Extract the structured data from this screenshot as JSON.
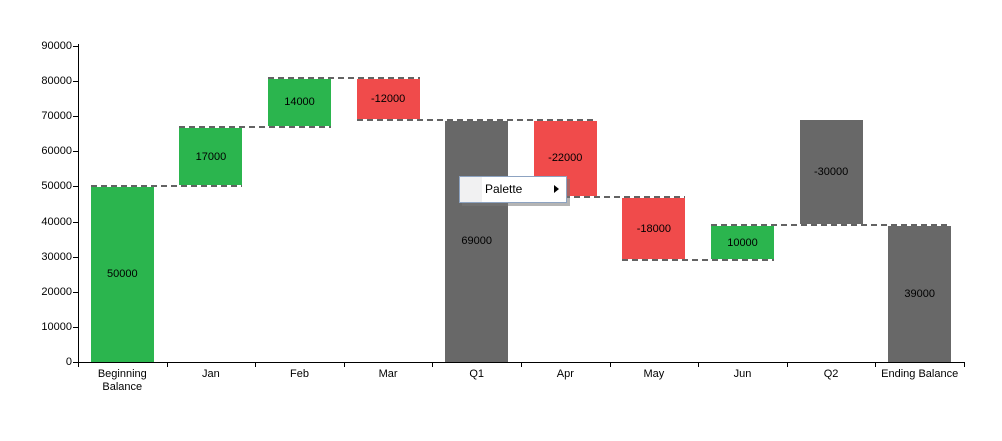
{
  "context_menu": {
    "items": [
      {
        "label": "Palette",
        "has_submenu": true,
        "submenu_icon": "right-arrow"
      }
    ]
  },
  "chart_data": {
    "type": "bar",
    "subtype": "waterfall",
    "title": "",
    "xlabel": "",
    "ylabel": "",
    "categories": [
      "Beginning Balance",
      "Jan",
      "Feb",
      "Mar",
      "Q1",
      "Apr",
      "May",
      "Jun",
      "Q2",
      "Ending Balance"
    ],
    "bars": [
      {
        "category": "Beginning Balance",
        "value": 50000,
        "start": 0,
        "end": 50000,
        "kind": "increase"
      },
      {
        "category": "Jan",
        "value": 17000,
        "start": 50000,
        "end": 67000,
        "kind": "increase"
      },
      {
        "category": "Feb",
        "value": 14000,
        "start": 67000,
        "end": 81000,
        "kind": "increase"
      },
      {
        "category": "Mar",
        "value": -12000,
        "start": 81000,
        "end": 69000,
        "kind": "decrease"
      },
      {
        "category": "Q1",
        "value": 69000,
        "start": 0,
        "end": 69000,
        "kind": "total"
      },
      {
        "category": "Apr",
        "value": -22000,
        "start": 69000,
        "end": 47000,
        "kind": "decrease"
      },
      {
        "category": "May",
        "value": -18000,
        "start": 47000,
        "end": 29000,
        "kind": "decrease"
      },
      {
        "category": "Jun",
        "value": 10000,
        "start": 29000,
        "end": 39000,
        "kind": "increase"
      },
      {
        "category": "Q2",
        "value": -30000,
        "start": 69000,
        "end": 39000,
        "kind": "total"
      },
      {
        "category": "Ending Balance",
        "value": 39000,
        "start": 0,
        "end": 39000,
        "kind": "total"
      }
    ],
    "connectors": [
      {
        "level": 50000,
        "from": 0,
        "to": 1
      },
      {
        "level": 67000,
        "from": 1,
        "to": 2
      },
      {
        "level": 81000,
        "from": 2,
        "to": 3
      },
      {
        "level": 69000,
        "from": 3,
        "to": 5
      },
      {
        "level": 47000,
        "from": 5,
        "to": 6
      },
      {
        "level": 29000,
        "from": 6,
        "to": 7
      },
      {
        "level": 39000,
        "from": 7,
        "to": 9
      }
    ],
    "y_axis": {
      "min": 0,
      "max": 90000,
      "step": 10000,
      "tick_labels": [
        "0",
        "10000",
        "20000",
        "30000",
        "40000",
        "50000",
        "60000",
        "70000",
        "80000",
        "90000"
      ]
    },
    "legend": null,
    "grid": false,
    "colors": {
      "increase": "#2bb54e",
      "decrease": "#f04b4b",
      "total": "#686868",
      "connector": "#636363",
      "axis": "#000000",
      "text": "#000000"
    }
  }
}
